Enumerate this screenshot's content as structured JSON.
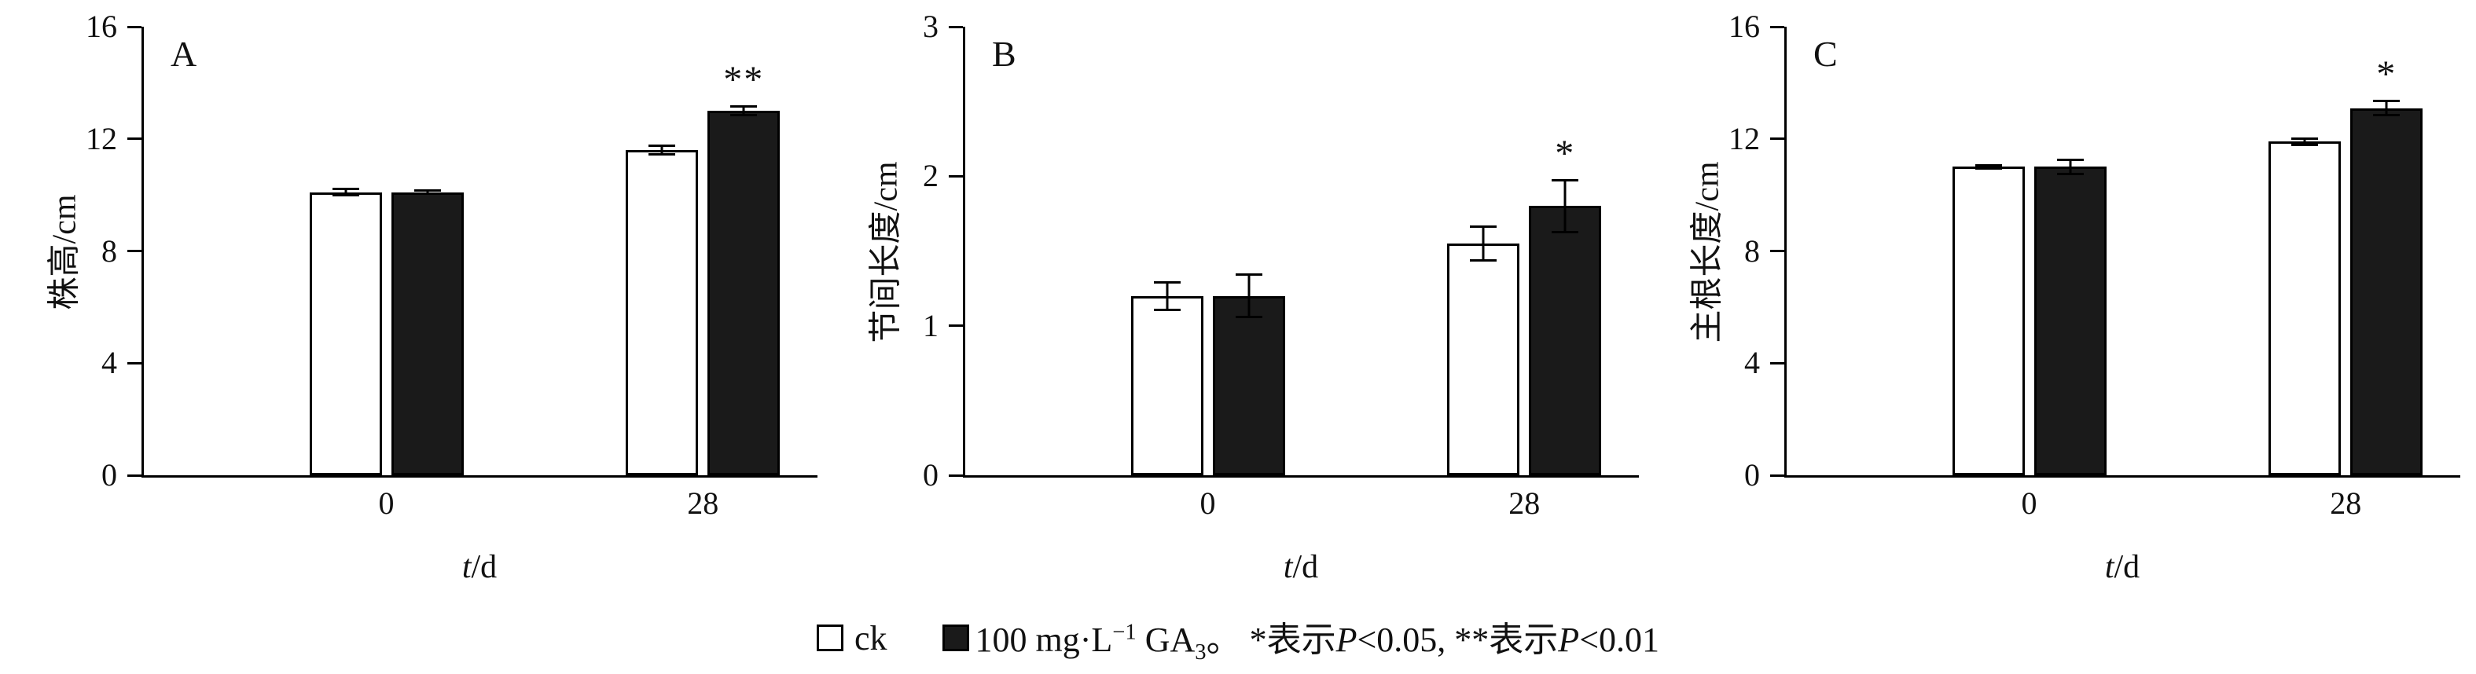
{
  "figure": {
    "legend": {
      "position": "bottom-center",
      "ck_label": "ck",
      "treatment_prefix": "100 mg·L",
      "treatment_sup": "−1",
      "treatment_mid": " GA",
      "treatment_sub": "3",
      "note_sep": "。 ",
      "note_star": "*表示",
      "note_p1": "P",
      "note_mid": "<0.05, **表示",
      "note_p2": "P",
      "note_end": "<0.01",
      "ck_color": "#ffffff",
      "treatment_color": "#1a1a1a",
      "swatch_border_color": "#000000"
    }
  },
  "chart_data": [
    {
      "type": "bar",
      "panel_label": "A",
      "ylabel": "株高/cm",
      "xlabel_italic": "t",
      "xlabel_rest": "/d",
      "ylim": [
        0,
        16
      ],
      "yticks": [
        0,
        4,
        8,
        12,
        16
      ],
      "categories": [
        "0",
        "28"
      ],
      "grid": false,
      "series": [
        {
          "name": "ck",
          "color": "#ffffff",
          "values": [
            10.1,
            11.6
          ],
          "errors": [
            0.15,
            0.2
          ]
        },
        {
          "name": "100 mg·L⁻¹ GA₃",
          "color": "#1a1a1a",
          "values": [
            10.1,
            13.0
          ],
          "errors": [
            0.1,
            0.2
          ]
        }
      ],
      "significance": [
        {
          "category_index": 1,
          "series_index": 1,
          "marker": "**"
        }
      ]
    },
    {
      "type": "bar",
      "panel_label": "B",
      "ylabel": "节间长度/cm",
      "xlabel_italic": "t",
      "xlabel_rest": "/d",
      "ylim": [
        0,
        3
      ],
      "yticks": [
        0,
        1,
        2,
        3
      ],
      "categories": [
        "0",
        "28"
      ],
      "grid": false,
      "series": [
        {
          "name": "ck",
          "color": "#ffffff",
          "values": [
            1.2,
            1.55
          ],
          "errors": [
            0.1,
            0.12
          ]
        },
        {
          "name": "100 mg·L⁻¹ GA₃",
          "color": "#1a1a1a",
          "values": [
            1.2,
            1.8
          ],
          "errors": [
            0.15,
            0.18
          ]
        }
      ],
      "significance": [
        {
          "category_index": 1,
          "series_index": 1,
          "marker": "*"
        }
      ]
    },
    {
      "type": "bar",
      "panel_label": "C",
      "ylabel": "主根长度/cm",
      "xlabel_italic": "t",
      "xlabel_rest": "/d",
      "ylim": [
        0,
        16
      ],
      "yticks": [
        0,
        4,
        8,
        12,
        16
      ],
      "categories": [
        "0",
        "28"
      ],
      "grid": false,
      "series": [
        {
          "name": "ck",
          "color": "#ffffff",
          "values": [
            11.0,
            11.9
          ],
          "errors": [
            0.1,
            0.15
          ]
        },
        {
          "name": "100 mg·L⁻¹ GA₃",
          "color": "#1a1a1a",
          "values": [
            11.0,
            13.1
          ],
          "errors": [
            0.3,
            0.3
          ]
        }
      ],
      "significance": [
        {
          "category_index": 1,
          "series_index": 1,
          "marker": "*"
        }
      ]
    }
  ]
}
